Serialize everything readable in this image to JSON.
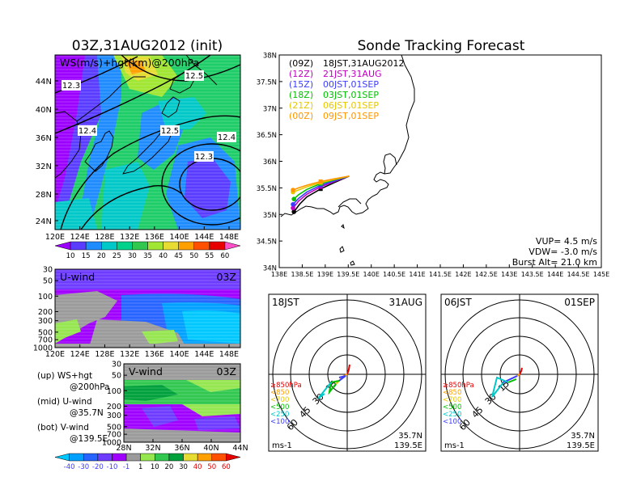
{
  "colors": {
    "ws_levels": [
      "#9b00ff",
      "#5a3cff",
      "#1e8cff",
      "#00c8c8",
      "#00d28c",
      "#32c850",
      "#a0e632",
      "#e6dc32",
      "#ffa000",
      "#ff5000",
      "#e60000",
      "#ff50c8"
    ],
    "uv_levels": [
      "#00c8ff",
      "#00a0ff",
      "#2864ff",
      "#6e3cff",
      "#a000ff",
      "#9b9b9b",
      "#96e650",
      "#32c850",
      "#00a03c",
      "#e6dc32",
      "#ffa000",
      "#ff5000",
      "#e60000"
    ],
    "flight": [
      "#000000",
      "#c000c0",
      "#3c3cff",
      "#00c000",
      "#e6c800",
      "#ff9600"
    ]
  },
  "panel_ws": {
    "title": "03Z,31AUG2012 (init)",
    "label": "WS(m/s)+hgt(km)@200hPa",
    "lat_ticks": [
      "24N",
      "28N",
      "32N",
      "36N",
      "40N",
      "44N"
    ],
    "lon_ticks": [
      "120E",
      "124E",
      "128E",
      "132E",
      "136E",
      "140E",
      "144E",
      "148E"
    ],
    "hgt_labels": [
      "12.3",
      "12.5",
      "12.4",
      "12.5",
      "12.4",
      "12.3"
    ],
    "colorbar_ticks": [
      "10",
      "15",
      "20",
      "25",
      "30",
      "35",
      "40",
      "45",
      "50",
      "55",
      "60"
    ]
  },
  "panel_u": {
    "title": "U-wind",
    "time": "03Z",
    "p_ticks": [
      "30",
      "50",
      "100",
      "200",
      "300",
      "500",
      "700",
      "1000"
    ],
    "lon_ticks": [
      "120E",
      "124E",
      "128E",
      "132E",
      "136E",
      "140E",
      "144E",
      "148E"
    ]
  },
  "panel_v": {
    "title": "V-wind",
    "time": "03Z",
    "p_ticks": [
      "30",
      "50",
      "100",
      "200",
      "300",
      "500",
      "700",
      "1000"
    ],
    "lat_ticks": [
      "28N",
      "32N",
      "36N",
      "40N",
      "44N"
    ],
    "uv_colorbar_ticks": [
      "-40",
      "-30",
      "-20",
      "-10",
      "-1",
      "1",
      "10",
      "20",
      "30",
      "40",
      "50",
      "60"
    ]
  },
  "legend_notes": [
    {
      "tag": "(up)",
      "line1": "WS+hgt",
      "line2": "@200hPa"
    },
    {
      "tag": "(mid)",
      "line1": "U-wind",
      "line2": "@35.7N"
    },
    {
      "tag": "(bot)",
      "line1": "V-wind",
      "line2": "@139.5E"
    }
  ],
  "track": {
    "title": "Sonde Tracking Forecast",
    "lat_ticks": [
      "34N",
      "34.5N",
      "35N",
      "35.5N",
      "36N",
      "36.5N",
      "37N",
      "37.5N",
      "38N"
    ],
    "lon_ticks": [
      "138E",
      "138.5E",
      "139E",
      "139.5E",
      "140E",
      "140.5E",
      "141E",
      "141.5E",
      "142E",
      "142.5E",
      "143E",
      "143.5E",
      "144E",
      "144.5E",
      "145E"
    ],
    "launches": [
      {
        "utc": "(09Z)",
        "jst": "18JST,31AUG2012"
      },
      {
        "utc": "(12Z)",
        "jst": "21JST,31AUG"
      },
      {
        "utc": "(15Z)",
        "jst": "00JST,01SEP"
      },
      {
        "utc": "(18Z)",
        "jst": "03JST,01SEP"
      },
      {
        "utc": "(21Z)",
        "jst": "06JST,01SEP"
      },
      {
        "utc": "(00Z)",
        "jst": "09JST,01SEP"
      }
    ],
    "vup": "VUP= 4.5 m/s",
    "vdw": "VDW= -3.0 m/s",
    "burst": "Burst Alt= 21.0 km"
  },
  "chart_data": {
    "type": "line",
    "title": "Sonde Tracking Forecast",
    "xlim": [
      138,
      145
    ],
    "ylim": [
      34,
      38
    ],
    "launch_point": [
      139.52,
      35.72
    ],
    "series": [
      {
        "name": "(09Z) 18JST,31AUG2012",
        "x": [
          139.52,
          139.2,
          138.9,
          138.6,
          138.45,
          138.32
        ],
        "y": [
          35.72,
          35.6,
          35.48,
          35.33,
          35.2,
          35.05
        ]
      },
      {
        "name": "(12Z) 21JST,31AUG",
        "x": [
          139.52,
          139.2,
          138.9,
          138.6,
          138.42,
          138.3
        ],
        "y": [
          35.72,
          35.62,
          35.52,
          35.38,
          35.25,
          35.12
        ]
      },
      {
        "name": "(15Z) 00JST,01SEP",
        "x": [
          139.52,
          139.2,
          138.9,
          138.6,
          138.42,
          138.3
        ],
        "y": [
          35.72,
          35.63,
          35.55,
          35.42,
          35.3,
          35.19
        ]
      },
      {
        "name": "(18Z) 03JST,01SEP",
        "x": [
          139.52,
          139.2,
          138.9,
          138.6,
          138.42,
          138.32
        ],
        "y": [
          35.72,
          35.65,
          35.58,
          35.47,
          35.37,
          35.29
        ]
      },
      {
        "name": "(21Z) 06JST,01SEP",
        "x": [
          139.52,
          139.2,
          138.9,
          138.6,
          138.42,
          138.3
        ],
        "y": [
          35.72,
          35.66,
          35.6,
          35.52,
          35.46,
          35.42
        ]
      },
      {
        "name": "(00Z) 09JST,01SEP",
        "x": [
          139.52,
          139.2,
          138.9,
          138.6,
          138.42,
          138.3
        ],
        "y": [
          35.72,
          35.67,
          35.62,
          35.55,
          35.5,
          35.46
        ]
      }
    ]
  },
  "hodo_1": {
    "left": "18JST",
    "right": "31AUG",
    "speed_labels": [
      "15",
      "30",
      "45",
      "60"
    ],
    "levels": [
      "≥850hPa",
      "<850",
      "<700",
      "<500",
      "<250",
      "<100"
    ],
    "unit": "ms-1",
    "lat": "35.7N",
    "lon": "139.5E"
  },
  "hodo_2": {
    "left": "06JST",
    "right": "01SEP",
    "speed_labels": [
      "15",
      "30",
      "45",
      "60"
    ],
    "levels": [
      "≥850hPa",
      "<850",
      "<700",
      "<500",
      "<250",
      "<100"
    ],
    "unit": "ms-1",
    "lat": "35.7N",
    "lon": "139.5E"
  }
}
